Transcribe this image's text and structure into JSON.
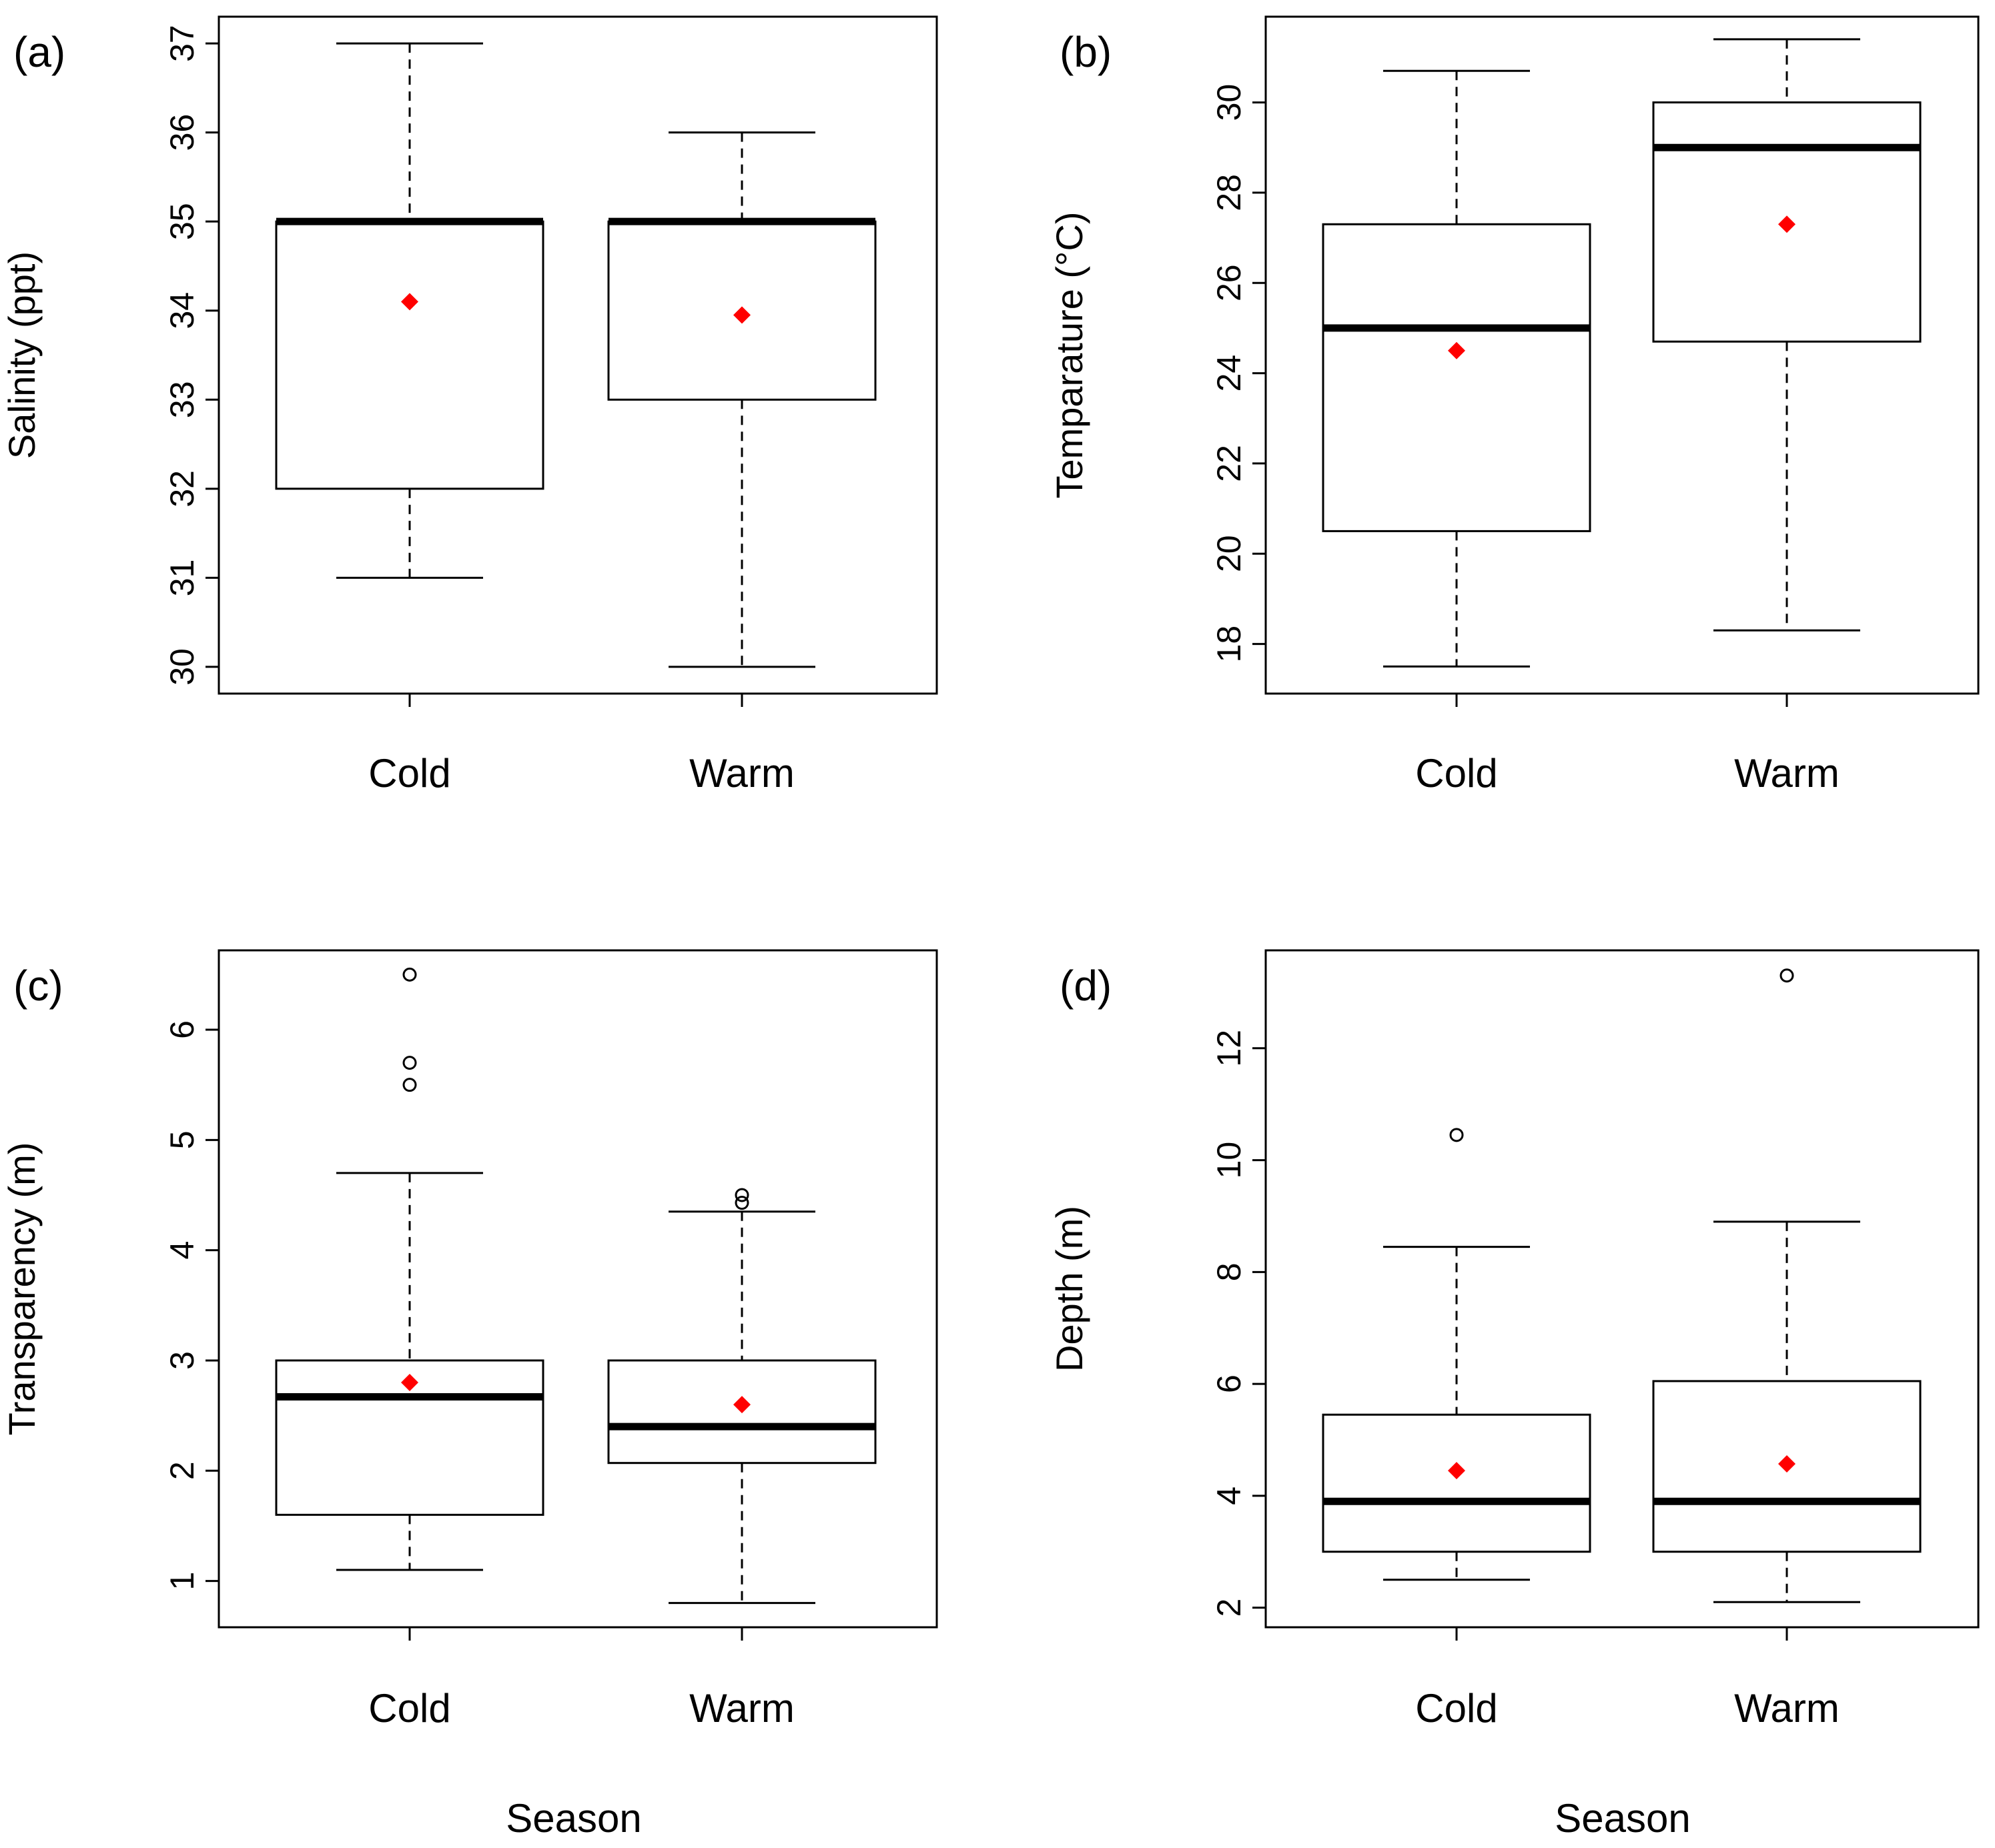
{
  "figure": {
    "xlabel_bottom_left": "Season",
    "xlabel_bottom_right": "Season"
  },
  "chart_data": [
    {
      "type": "box",
      "panel_label": "(a)",
      "title": "",
      "xlabel": "",
      "ylabel": "Salinity (ppt)",
      "categories": [
        "Cold",
        "Warm"
      ],
      "ylim": [
        29.7,
        37.3
      ],
      "yticks": [
        30,
        31,
        32,
        33,
        34,
        35,
        36,
        37
      ],
      "boxes": [
        {
          "category": "Cold",
          "whisker_low": 31,
          "q1": 32,
          "median": 35,
          "q3": 35,
          "whisker_high": 37,
          "mean": 34.1,
          "outliers": []
        },
        {
          "category": "Warm",
          "whisker_low": 30,
          "q1": 33,
          "median": 35,
          "q3": 35,
          "whisker_high": 36,
          "mean": 33.95,
          "outliers": []
        }
      ],
      "mean_marker_color": "#ff0000"
    },
    {
      "type": "box",
      "panel_label": "(b)",
      "title": "",
      "xlabel": "",
      "ylabel": "Temparature (°C)",
      "categories": [
        "Cold",
        "Warm"
      ],
      "ylim": [
        16.9,
        31.9
      ],
      "yticks": [
        18,
        20,
        22,
        24,
        26,
        28,
        30
      ],
      "boxes": [
        {
          "category": "Cold",
          "whisker_low": 17.5,
          "q1": 20.5,
          "median": 25.0,
          "q3": 27.3,
          "whisker_high": 30.7,
          "mean": 24.5,
          "outliers": []
        },
        {
          "category": "Warm",
          "whisker_low": 18.3,
          "q1": 24.7,
          "median": 29.0,
          "q3": 30.0,
          "whisker_high": 31.4,
          "mean": 27.3,
          "outliers": []
        }
      ],
      "mean_marker_color": "#ff0000"
    },
    {
      "type": "box",
      "panel_label": "(c)",
      "title": "",
      "xlabel": "Season",
      "ylabel": "Transparency (m)",
      "categories": [
        "Cold",
        "Warm"
      ],
      "ylim": [
        0.58,
        6.72
      ],
      "yticks": [
        1,
        2,
        3,
        4,
        5,
        6
      ],
      "boxes": [
        {
          "category": "Cold",
          "whisker_low": 1.1,
          "q1": 1.6,
          "median": 2.67,
          "q3": 3.0,
          "whisker_high": 4.7,
          "mean": 2.8,
          "outliers": [
            5.5,
            5.7,
            6.5
          ]
        },
        {
          "category": "Warm",
          "whisker_low": 0.8,
          "q1": 2.07,
          "median": 2.4,
          "q3": 3.0,
          "whisker_high": 4.35,
          "mean": 2.6,
          "outliers": [
            4.43,
            4.5
          ]
        }
      ],
      "mean_marker_color": "#ff0000"
    },
    {
      "type": "box",
      "panel_label": "(d)",
      "title": "",
      "xlabel": "Season",
      "ylabel": "Depth (m)",
      "categories": [
        "Cold",
        "Warm"
      ],
      "ylim": [
        1.65,
        13.75
      ],
      "yticks": [
        2,
        4,
        6,
        8,
        10,
        12
      ],
      "boxes": [
        {
          "category": "Cold",
          "whisker_low": 2.5,
          "q1": 3.0,
          "median": 3.9,
          "q3": 5.45,
          "whisker_high": 8.45,
          "mean": 4.45,
          "outliers": [
            10.45
          ]
        },
        {
          "category": "Warm",
          "whisker_low": 2.1,
          "q1": 3.0,
          "median": 3.9,
          "q3": 6.05,
          "whisker_high": 8.9,
          "mean": 4.57,
          "outliers": [
            13.3
          ]
        }
      ],
      "mean_marker_color": "#ff0000"
    }
  ]
}
